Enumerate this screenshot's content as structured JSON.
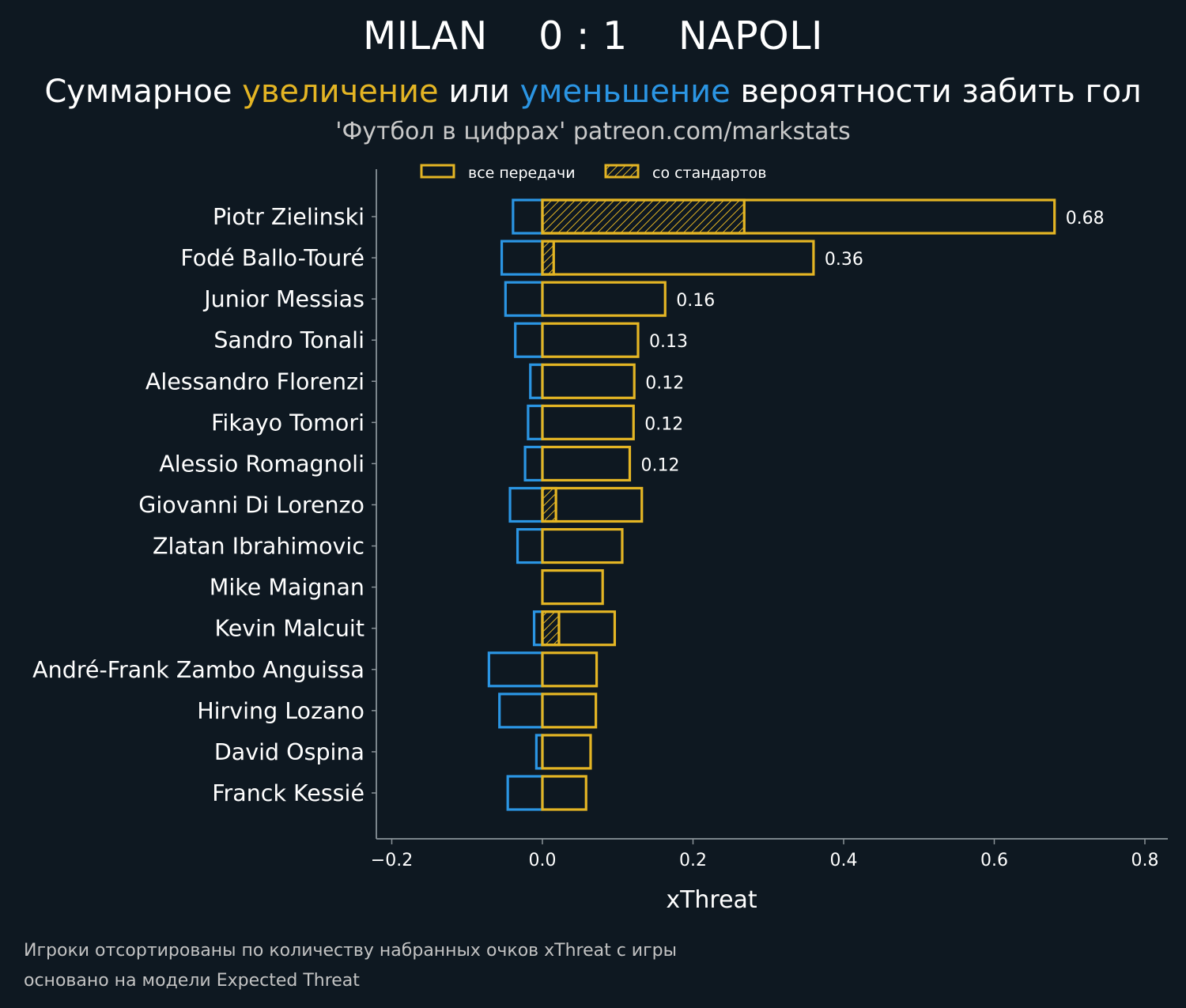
{
  "header": {
    "title": "MILAN    0 : 1    NAPOLI",
    "subtitle": {
      "part1": "Суммарное ",
      "increase": "увеличение",
      "part2": " или ",
      "decrease": "уменьшение",
      "part3": " вероятности забить гол"
    },
    "source": "'Футбол в цифрах' patreon.com/markstats"
  },
  "footnote": {
    "line1": "Игроки отсортированы по количеству набранных очков xThreat с игры",
    "line2": "основано на модели Expected Threat"
  },
  "colors": {
    "background": "#0e1821",
    "increase": "#e4b524",
    "decrease": "#2b95e3",
    "axis": "#8a9399"
  },
  "chart_data": {
    "type": "bar",
    "orientation": "horizontal",
    "xlabel": "xThreat",
    "xlim": [
      -0.22,
      0.83
    ],
    "xticks": [
      -0.2,
      0.0,
      0.2,
      0.4,
      0.6,
      0.8
    ],
    "xtick_labels": [
      "−0.2",
      "0.0",
      "0.2",
      "0.4",
      "0.6",
      "0.8"
    ],
    "legend": {
      "placement": "top",
      "entries": [
        {
          "label": "все передачи",
          "hatched": false
        },
        {
          "label": "со стандартов",
          "hatched": true
        }
      ]
    },
    "categories": [
      "Piotr Zielinski",
      "Fodé Ballo-Touré",
      "Junior Messias",
      "Sandro Tonali",
      "Alessandro Florenzi",
      "Fikayo Tomori",
      "Alessio Romagnoli",
      "Giovanni Di Lorenzo",
      "Zlatan Ibrahimovic",
      "Mike Maignan",
      "Kevin Malcuit",
      "André-Frank Zambo Anguissa",
      "Hirving Lozano",
      "David Ospina",
      "Franck Kessié"
    ],
    "series": [
      {
        "name": "все передачи",
        "values": [
          0.68,
          0.36,
          0.163,
          0.127,
          0.122,
          0.121,
          0.116,
          0.132,
          0.106,
          0.08,
          0.096,
          0.072,
          0.071,
          0.064,
          0.058
        ]
      },
      {
        "name": "со стандартов",
        "values": [
          0.268,
          0.015,
          0,
          0,
          0,
          0,
          0,
          0.018,
          0,
          0,
          0.022,
          0,
          0,
          0,
          0
        ]
      },
      {
        "values": [
          -0.039,
          -0.054,
          -0.049,
          -0.036,
          -0.016,
          -0.019,
          -0.023,
          -0.043,
          -0.033,
          0,
          -0.011,
          -0.071,
          -0.057,
          -0.008,
          -0.046
        ]
      }
    ],
    "data_labels": [
      "0.68",
      "0.36",
      "0.16",
      "0.13",
      "0.12",
      "0.12",
      "0.12",
      "",
      "",
      "",
      "",
      "",
      "",
      "",
      ""
    ]
  }
}
